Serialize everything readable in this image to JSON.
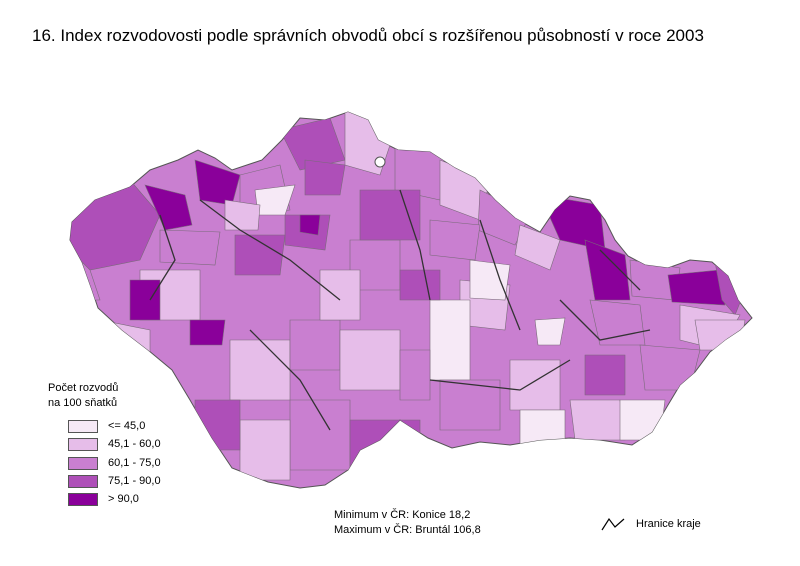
{
  "title": "16. Index rozvodovosti podle správních obvodů obcí s rozšířenou působností v roce 2003",
  "legend": {
    "title_line1": "Počet rozvodů",
    "title_line2": "na 100 sňatků",
    "classes": [
      {
        "label": "<= 45,0",
        "color": "#f6e9f6"
      },
      {
        "label": "45,1 - 60,0",
        "color": "#e6bde9"
      },
      {
        "label": "60,1 - 75,0",
        "color": "#c97fd0"
      },
      {
        "label": "75,1 - 90,0",
        "color": "#ae4fb8"
      },
      {
        "label": "> 90,0",
        "color": "#8a009a"
      }
    ]
  },
  "stats": {
    "minimum": "Minimum v ČR: Konice 18,2",
    "maximum": "Maximum v ČR: Bruntál 106,8"
  },
  "border_legend": {
    "label": "Hranice kraje",
    "icon": "region-border-line-icon"
  }
}
